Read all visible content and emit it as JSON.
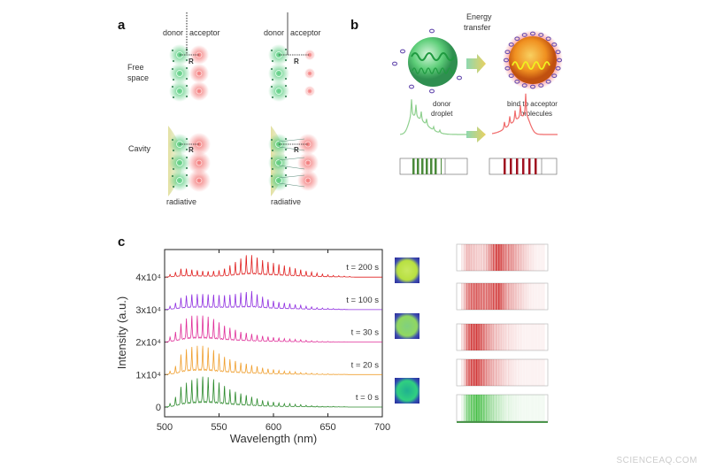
{
  "panel_a": {
    "label": "a",
    "donor": "donor",
    "acceptor": "acceptor",
    "distance": "R",
    "row_free_space_line1": "Free",
    "row_free_space_line2": "space",
    "row_cavity": "Cavity",
    "radiative": "radiative",
    "colors": {
      "donor": "#3cc46a",
      "acceptor": "#f06060",
      "cavity": "#e4e0a0"
    }
  },
  "panel_b": {
    "label": "b",
    "energy_line1": "Energy",
    "energy_line2": "transfer",
    "donor_line1": "donor",
    "donor_line2": "droplet",
    "acceptor_line1": "bind to acceptor",
    "acceptor_line2": "molecules",
    "colors": {
      "donor": "#3fbf5f",
      "acceptor": "#f08a20",
      "molecule": "#6a50b0"
    }
  },
  "panel_c": {
    "label": "c",
    "watermark": "SCIENCEAQ.COM"
  },
  "chart_data": {
    "type": "line",
    "xlabel": "Wavelength (nm)",
    "ylabel": "Intensity (a.u.)",
    "xlim": [
      500,
      700
    ],
    "ylim": [
      -0.3,
      4.85
    ],
    "y_unit_multiplier": 10000,
    "xticks": [
      500,
      550,
      600,
      650,
      700
    ],
    "xtick_labels": [
      "500",
      "550",
      "600",
      "650",
      "700"
    ],
    "yticks": [
      0,
      1,
      2,
      3,
      4
    ],
    "ytick_labels": [
      "0",
      "1x10⁴",
      "2x10⁴",
      "3x10⁴",
      "4x10⁴"
    ],
    "grid": false,
    "peak_wavelengths": [
      505,
      510,
      515,
      520,
      525,
      530,
      535,
      540,
      545,
      550,
      555,
      560,
      565,
      570,
      575,
      580,
      585,
      590,
      595,
      600,
      605,
      610,
      615,
      620,
      625,
      630,
      635,
      640,
      645,
      650,
      655,
      660,
      665,
      670
    ],
    "series": [
      {
        "name": "t = 0 s",
        "offset": 0,
        "color": "#2e8b2e",
        "peak_heights": [
          0.1,
          0.3,
          0.6,
          0.72,
          0.8,
          0.85,
          0.9,
          0.88,
          0.82,
          0.72,
          0.62,
          0.52,
          0.45,
          0.4,
          0.35,
          0.3,
          0.25,
          0.2,
          0.16,
          0.15,
          0.12,
          0.1,
          0.1,
          0.08,
          0.07,
          0.05,
          0.04,
          0.03,
          0.02,
          0.02,
          0.02,
          0.01,
          0.01,
          0
        ]
      },
      {
        "name": "t = 20 s",
        "offset": 1,
        "color": "#f0a030",
        "peak_heights": [
          0.1,
          0.25,
          0.6,
          0.75,
          0.82,
          0.85,
          0.85,
          0.8,
          0.72,
          0.62,
          0.52,
          0.45,
          0.4,
          0.35,
          0.32,
          0.28,
          0.24,
          0.2,
          0.17,
          0.15,
          0.12,
          0.1,
          0.09,
          0.08,
          0.06,
          0.05,
          0.04,
          0.03,
          0.02,
          0.02,
          0.01,
          0.01,
          0.01,
          0
        ]
      },
      {
        "name": "t = 30 s",
        "offset": 2,
        "color": "#e0309a",
        "peak_heights": [
          0.15,
          0.3,
          0.55,
          0.7,
          0.78,
          0.78,
          0.78,
          0.75,
          0.68,
          0.58,
          0.48,
          0.42,
          0.36,
          0.3,
          0.27,
          0.24,
          0.21,
          0.18,
          0.16,
          0.14,
          0.12,
          0.1,
          0.09,
          0.08,
          0.07,
          0.05,
          0.04,
          0.03,
          0.02,
          0.02,
          0.01,
          0.01,
          0.01,
          0
        ]
      },
      {
        "name": "t = 100 s",
        "offset": 3,
        "color": "#9030e0",
        "peak_heights": [
          0.1,
          0.2,
          0.35,
          0.42,
          0.45,
          0.46,
          0.46,
          0.45,
          0.44,
          0.43,
          0.42,
          0.44,
          0.46,
          0.5,
          0.52,
          0.55,
          0.45,
          0.38,
          0.3,
          0.26,
          0.22,
          0.2,
          0.18,
          0.15,
          0.13,
          0.1,
          0.08,
          0.06,
          0.05,
          0.04,
          0.03,
          0.02,
          0.01,
          0
        ]
      },
      {
        "name": "t = 200 s",
        "offset": 4,
        "color": "#e02020",
        "peak_heights": [
          0.08,
          0.15,
          0.25,
          0.25,
          0.22,
          0.2,
          0.18,
          0.17,
          0.18,
          0.2,
          0.25,
          0.35,
          0.45,
          0.55,
          0.65,
          0.65,
          0.58,
          0.5,
          0.45,
          0.42,
          0.38,
          0.34,
          0.3,
          0.26,
          0.22,
          0.18,
          0.15,
          0.12,
          0.09,
          0.07,
          0.05,
          0.04,
          0.03,
          0.02
        ]
      }
    ]
  }
}
